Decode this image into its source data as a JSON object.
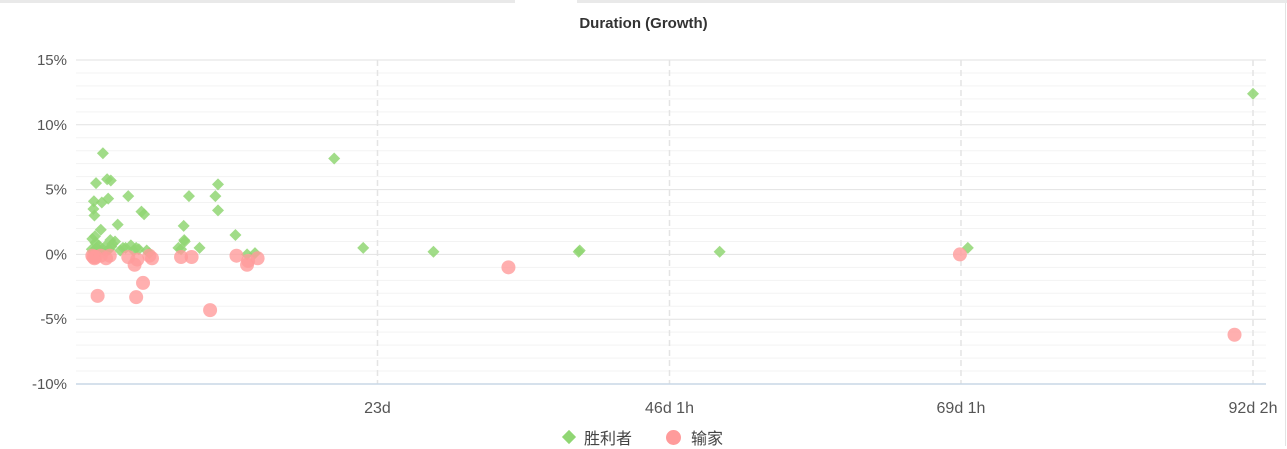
{
  "chart_data": {
    "type": "scatter",
    "title": "Duration (Growth)",
    "xlabel": "",
    "ylabel": "",
    "x_unit": "hours",
    "xlim": [
      0,
      2220
    ],
    "ylim": [
      -10,
      15
    ],
    "x_ticks": [
      {
        "value": 552,
        "label": "23d"
      },
      {
        "value": 1105,
        "label": "46d 1h"
      },
      {
        "value": 1657,
        "label": "69d 1h"
      },
      {
        "value": 2210,
        "label": "92d 2h"
      }
    ],
    "y_ticks": [
      {
        "value": 15,
        "label": "15%"
      },
      {
        "value": 10,
        "label": "10%"
      },
      {
        "value": 5,
        "label": "5%"
      },
      {
        "value": 0,
        "label": "0%"
      },
      {
        "value": -5,
        "label": "-5%"
      },
      {
        "value": -10,
        "label": "-10%"
      }
    ],
    "grid": true,
    "legend_position": "bottom-center",
    "series": [
      {
        "name": "胜利者",
        "symbol": "diamond",
        "color": "#90d673",
        "points": [
          [
            11,
            0.4
          ],
          [
            12,
            1.2
          ],
          [
            13,
            0.2
          ],
          [
            14,
            3.5
          ],
          [
            15,
            4.1
          ],
          [
            16,
            3.0
          ],
          [
            17,
            1.4
          ],
          [
            18,
            0.9
          ],
          [
            19,
            5.5
          ],
          [
            20,
            0.5
          ],
          [
            22,
            0.1
          ],
          [
            24,
            0.7
          ],
          [
            26,
            0.3
          ],
          [
            28,
            1.9
          ],
          [
            30,
            4.0
          ],
          [
            32,
            7.8
          ],
          [
            34,
            0.3
          ],
          [
            36,
            0.6
          ],
          [
            38,
            0.2
          ],
          [
            40,
            5.8
          ],
          [
            42,
            4.3
          ],
          [
            44,
            0.4
          ],
          [
            46,
            1.1
          ],
          [
            47,
            5.7
          ],
          [
            48,
            0.6
          ],
          [
            50,
            0.8
          ],
          [
            55,
            1.0
          ],
          [
            60,
            2.3
          ],
          [
            65,
            0.3
          ],
          [
            70,
            0.5
          ],
          [
            75,
            0.5
          ],
          [
            80,
            4.5
          ],
          [
            85,
            0.7
          ],
          [
            90,
            0.3
          ],
          [
            95,
            0.5
          ],
          [
            100,
            0.4
          ],
          [
            105,
            3.3
          ],
          [
            110,
            3.1
          ],
          [
            115,
            0.3
          ],
          [
            120,
            0.1
          ],
          [
            175,
            0.5
          ],
          [
            180,
            0.4
          ],
          [
            185,
            2.2
          ],
          [
            186,
            1.1
          ],
          [
            187,
            1.0
          ],
          [
            195,
            4.5
          ],
          [
            215,
            0.5
          ],
          [
            245,
            4.5
          ],
          [
            250,
            3.4
          ],
          [
            250,
            5.4
          ],
          [
            283,
            1.5
          ],
          [
            305,
            0.0
          ],
          [
            320,
            0.1
          ],
          [
            470,
            7.4
          ],
          [
            525,
            0.5
          ],
          [
            658,
            0.2
          ],
          [
            933,
            0.2
          ],
          [
            935,
            0.3
          ],
          [
            1200,
            0.2
          ],
          [
            1670,
            0.5
          ],
          [
            2210,
            12.4
          ]
        ]
      },
      {
        "name": "输家",
        "symbol": "circle",
        "color": "#ff9b9b",
        "points": [
          [
            12,
            -0.1
          ],
          [
            14,
            -0.2
          ],
          [
            16,
            -0.3
          ],
          [
            18,
            -0.2
          ],
          [
            22,
            -3.2
          ],
          [
            28,
            -0.1
          ],
          [
            38,
            -0.3
          ],
          [
            45,
            -0.1
          ],
          [
            80,
            -0.2
          ],
          [
            92,
            -0.8
          ],
          [
            95,
            -3.3
          ],
          [
            97,
            -0.4
          ],
          [
            108,
            -2.2
          ],
          [
            120,
            -0.1
          ],
          [
            125,
            -0.3
          ],
          [
            180,
            -0.2
          ],
          [
            200,
            -0.2
          ],
          [
            235,
            -4.3
          ],
          [
            285,
            -0.1
          ],
          [
            305,
            -0.8
          ],
          [
            307,
            -0.5
          ],
          [
            325,
            -0.3
          ],
          [
            800,
            -1.0
          ],
          [
            1655,
            0.0
          ],
          [
            2175,
            -6.2
          ]
        ]
      }
    ]
  }
}
